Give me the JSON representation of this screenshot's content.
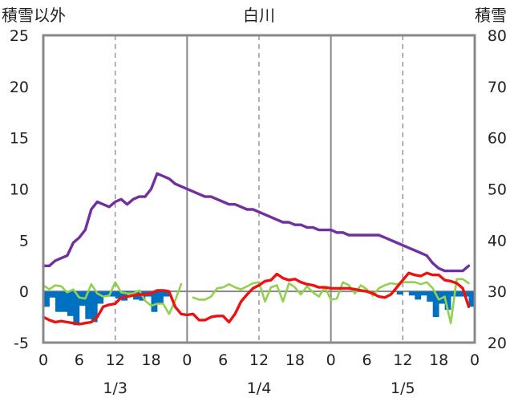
{
  "chart_data": {
    "type": "line",
    "title": "白川",
    "left_axis_label": "積雪以外",
    "right_axis_label": "積雪",
    "left_ylim": [
      -5,
      25
    ],
    "left_yticks": [
      "-5",
      "0",
      "5",
      "10",
      "15",
      "20",
      "25"
    ],
    "right_ylim": [
      20,
      80
    ],
    "right_yticks": [
      "20",
      "30",
      "40",
      "50",
      "60",
      "70",
      "80"
    ],
    "xlim": [
      0,
      72
    ],
    "x_tick_hours": [
      0,
      6,
      12,
      18,
      24,
      30,
      36,
      42,
      48,
      54,
      60,
      66,
      72
    ],
    "x_tick_labels": [
      "0",
      "6",
      "12",
      "18",
      "0",
      "6",
      "12",
      "18",
      "0",
      "6",
      "12",
      "18",
      "0"
    ],
    "day_labels": [
      "1/3",
      "1/4",
      "1/5"
    ],
    "day_label_hours": [
      12,
      36,
      60
    ],
    "gridlines": "dashed vertical at 12h, solid vertical at day boundaries",
    "colors": {
      "snow_depth": "#7030a0",
      "temperature": "#ee1111",
      "wind": "#92d050",
      "precip_bars": "#0070c0",
      "zero_line": "#888888",
      "frame": "#888888"
    },
    "series": [
      {
        "key": "snow_depth",
        "axis": "right",
        "render": "line",
        "x": [
          0,
          1,
          2,
          3,
          4,
          5,
          6,
          7,
          8,
          9,
          10,
          11,
          12,
          13,
          14,
          15,
          16,
          17,
          18,
          19,
          20,
          21,
          22,
          23,
          24,
          25,
          26,
          27,
          28,
          29,
          30,
          31,
          32,
          33,
          34,
          35,
          36,
          37,
          38,
          39,
          40,
          41,
          42,
          43,
          44,
          45,
          46,
          47,
          48,
          49,
          50,
          51,
          52,
          53,
          54,
          55,
          56,
          57,
          58,
          59,
          60,
          61,
          62,
          63,
          64,
          65,
          66,
          67,
          68,
          69,
          70,
          71
        ],
        "y": [
          35,
          35,
          36,
          36.5,
          37,
          39.5,
          40.5,
          42,
          46,
          47.5,
          47,
          46.5,
          47.5,
          48,
          47,
          48,
          48.5,
          48.5,
          50,
          53,
          52.5,
          52,
          51,
          50.5,
          50,
          49.5,
          49,
          48.5,
          48.5,
          48,
          47.5,
          47,
          47,
          46.5,
          46,
          46,
          45.5,
          45,
          44.5,
          44,
          43.5,
          43.5,
          43,
          43,
          42.5,
          42.5,
          42,
          42,
          42,
          41.5,
          41.5,
          41,
          41,
          41,
          41,
          41,
          41,
          40.5,
          40,
          39.5,
          39,
          38.5,
          38,
          37.5,
          37,
          35.5,
          34.5,
          34,
          34,
          34,
          34,
          35
        ]
      },
      {
        "key": "temperature",
        "axis": "left",
        "render": "line",
        "x": [
          0,
          1,
          2,
          3,
          4,
          5,
          6,
          7,
          8,
          9,
          10,
          11,
          12,
          13,
          14,
          15,
          16,
          17,
          18,
          19,
          20,
          21,
          22,
          23,
          24,
          25,
          26,
          27,
          28,
          29,
          30,
          31,
          32,
          33,
          34,
          35,
          36,
          37,
          38,
          39,
          40,
          41,
          42,
          43,
          44,
          45,
          46,
          47,
          48,
          49,
          50,
          51,
          52,
          53,
          54,
          55,
          56,
          57,
          58,
          59,
          60,
          61,
          62,
          63,
          64,
          65,
          66,
          67,
          68,
          69,
          70,
          71
        ],
        "y": [
          -2.5,
          -2.8,
          -3.0,
          -2.9,
          -3.0,
          -3.1,
          -3.2,
          -3.1,
          -3.0,
          -2.5,
          -1.5,
          -1.3,
          -1.2,
          -0.6,
          -0.5,
          -0.4,
          -0.3,
          -0.3,
          -0.2,
          0.1,
          0.1,
          0,
          -1.5,
          -2.2,
          -2.3,
          -2.2,
          -2.8,
          -2.8,
          -2.5,
          -2.4,
          -2.4,
          -3.0,
          -2.2,
          -1.0,
          -0.3,
          0.3,
          0.6,
          1.0,
          1.1,
          1.7,
          1.3,
          1.1,
          1.2,
          0.9,
          0.7,
          0.6,
          0.4,
          0.4,
          0.3,
          0.3,
          0.3,
          0.3,
          0.2,
          0.1,
          0,
          -0.2,
          -0.5,
          -0.6,
          -0.3,
          0.4,
          1.1,
          1.8,
          1.6,
          1.5,
          1.8,
          1.6,
          1.6,
          1.1,
          1.0,
          0.8,
          0.3,
          -1.5
        ]
      },
      {
        "key": "wind",
        "axis": "left",
        "render": "line",
        "x": [
          0,
          1,
          2,
          3,
          4,
          5,
          6,
          7,
          8,
          9,
          10,
          11,
          12,
          13,
          14,
          15,
          16,
          17,
          18,
          19,
          20,
          21,
          22,
          23,
          24,
          25,
          26,
          27,
          28,
          29,
          30,
          31,
          32,
          33,
          34,
          35,
          36,
          37,
          38,
          39,
          40,
          41,
          42,
          43,
          44,
          45,
          46,
          47,
          48,
          49,
          50,
          51,
          52,
          53,
          54,
          55,
          56,
          57,
          58,
          59,
          60,
          61,
          62,
          63,
          64,
          65,
          66,
          67,
          68,
          69,
          70,
          71
        ],
        "y": [
          0.6,
          0.2,
          0.6,
          0.5,
          -0.1,
          0.2,
          -0.6,
          -0.7,
          0.7,
          -0.2,
          -0.5,
          -0.4,
          0.9,
          -0.1,
          -0.2,
          -0.2,
          0.1,
          -0.9,
          -1.4,
          -1.2,
          -1.2,
          -2.2,
          -0.9,
          0.7,
          null,
          -0.6,
          -0.8,
          -0.8,
          -0.5,
          0.3,
          0.4,
          0.7,
          0.4,
          0.2,
          0.5,
          0.8,
          0.9,
          -1.0,
          0.4,
          0.6,
          -1.0,
          0.8,
          0.4,
          -0.3,
          0.5,
          -0.1,
          -0.5,
          0.4,
          -0.8,
          -0.7,
          0.9,
          0.6,
          -0.2,
          0.6,
          0.2,
          -0.4,
          0.3,
          0.6,
          0.8,
          0.7,
          0.9,
          0.9,
          0.9,
          0.7,
          0.9,
          0.3,
          -0.8,
          -0.5,
          -3.1,
          1.2,
          1.2,
          0.8
        ]
      },
      {
        "key": "precip_change",
        "axis": "left",
        "render": "bar",
        "x": [
          0,
          1,
          2,
          3,
          4,
          5,
          6,
          7,
          8,
          9,
          10,
          11,
          12,
          13,
          14,
          15,
          16,
          17,
          18,
          19,
          20,
          21,
          22,
          23,
          24,
          25,
          26,
          27,
          28,
          29,
          30,
          31,
          32,
          33,
          34,
          35,
          36,
          37,
          38,
          39,
          40,
          41,
          42,
          43,
          44,
          45,
          46,
          47,
          48,
          49,
          50,
          51,
          52,
          53,
          54,
          55,
          56,
          57,
          58,
          59,
          60,
          61,
          62,
          63,
          64,
          65,
          66,
          67,
          68,
          69,
          70,
          71
        ],
        "y": [
          -1.5,
          -0.6,
          -2.0,
          -2.0,
          -2.4,
          -3.3,
          -1.4,
          -2.7,
          -3.0,
          -1.2,
          -0.5,
          -0.5,
          -0.7,
          -0.9,
          -0.2,
          -0.8,
          -0.9,
          -0.5,
          -2.0,
          -1.2,
          -0.5,
          0,
          0,
          0,
          0,
          0,
          0,
          0,
          0,
          0,
          0,
          0,
          0,
          0,
          0,
          0,
          0,
          0,
          0,
          0,
          0,
          0,
          0,
          0,
          0,
          0,
          0,
          0,
          0,
          0,
          0,
          0,
          0,
          0,
          0,
          0,
          0,
          0,
          0,
          -0.3,
          0,
          -0.4,
          -0.8,
          -0.4,
          -1.0,
          -2.5,
          -1.2,
          -1.8,
          -0.5,
          -0.5,
          -0.5,
          -1.5
        ]
      }
    ]
  }
}
